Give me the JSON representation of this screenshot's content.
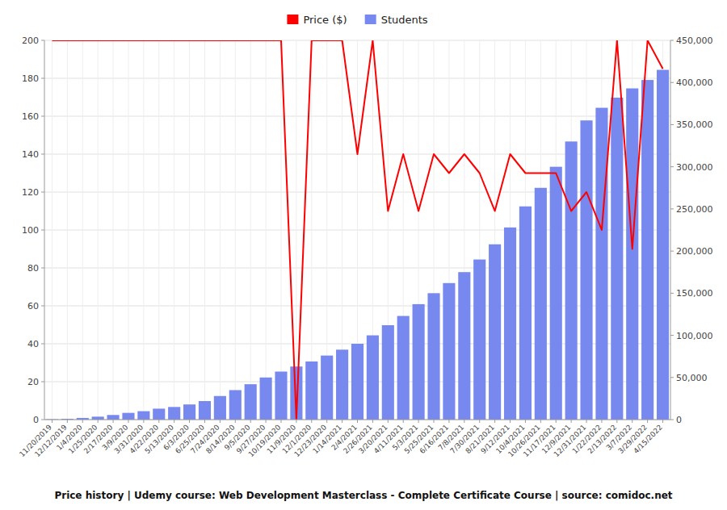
{
  "chart_data": {
    "type": "bar",
    "title": "Price history | Udemy course: Web Development Masterclass - Complete Certificate Course | source: comidoc.net",
    "categories": [
      "11/20/2019",
      "12/12/2019",
      "1/4/2020",
      "1/25/2020",
      "2/17/2020",
      "3/9/2020",
      "3/31/2020",
      "4/22/2020",
      "5/13/2020",
      "6/3/2020",
      "6/25/2020",
      "7/24/2020",
      "8/14/2020",
      "9/5/2020",
      "9/27/2020",
      "10/19/2020",
      "11/9/2020",
      "12/1/2020",
      "12/23/2020",
      "1/14/2021",
      "2/4/2021",
      "2/26/2021",
      "3/20/2021",
      "4/11/2021",
      "5/3/2021",
      "5/25/2021",
      "6/16/2021",
      "7/8/2021",
      "7/30/2021",
      "8/21/2021",
      "9/12/2021",
      "10/4/2021",
      "10/26/2021",
      "11/17/2021",
      "12/9/2021",
      "12/31/2021",
      "1/22/2022",
      "2/13/2022",
      "3/7/2022",
      "3/29/2022",
      "4/15/2022"
    ],
    "series": [
      {
        "name": "Price ($)",
        "type": "line",
        "color": "#ff0000",
        "values": [
          200,
          200,
          200,
          200,
          200,
          200,
          200,
          200,
          200,
          200,
          200,
          200,
          200,
          200,
          200,
          200,
          0,
          200,
          200,
          200,
          140,
          200,
          110,
          140,
          110,
          140,
          130,
          140,
          130,
          110,
          140,
          130,
          130,
          130,
          110,
          120,
          100,
          200,
          90,
          200,
          185
        ]
      },
      {
        "name": "Students",
        "type": "bar",
        "axis": "y2",
        "color": "#7788ee",
        "values": [
          500,
          1000,
          2000,
          3500,
          5500,
          8000,
          10000,
          13000,
          15000,
          18000,
          22000,
          28000,
          35000,
          42000,
          50000,
          57000,
          63000,
          69000,
          76000,
          83000,
          90000,
          100000,
          112000,
          123000,
          137000,
          150000,
          162000,
          175000,
          190000,
          208000,
          228000,
          253000,
          275000,
          300000,
          330000,
          355000,
          370000,
          382000,
          393000,
          403000,
          415000
        ]
      }
    ],
    "ylim": [
      0,
      200
    ],
    "yticks": [
      0,
      20,
      40,
      60,
      80,
      100,
      120,
      140,
      160,
      180,
      200
    ],
    "y2lim": [
      0,
      450000
    ],
    "y2ticks": [
      0,
      {
        "value": 50000,
        "label": "50,000"
      },
      {
        "value": 100000,
        "label": "100,000"
      },
      {
        "value": 150000,
        "label": "150,000"
      },
      {
        "value": 200000,
        "label": "200,000"
      },
      {
        "value": 250000,
        "label": "250,000"
      },
      {
        "value": 300000,
        "label": "300,000"
      },
      {
        "value": 350000,
        "label": "350,000"
      },
      {
        "value": 400000,
        "label": "400,000"
      },
      {
        "value": 450000,
        "label": "450,000"
      }
    ],
    "grid": true,
    "legend": "top"
  }
}
